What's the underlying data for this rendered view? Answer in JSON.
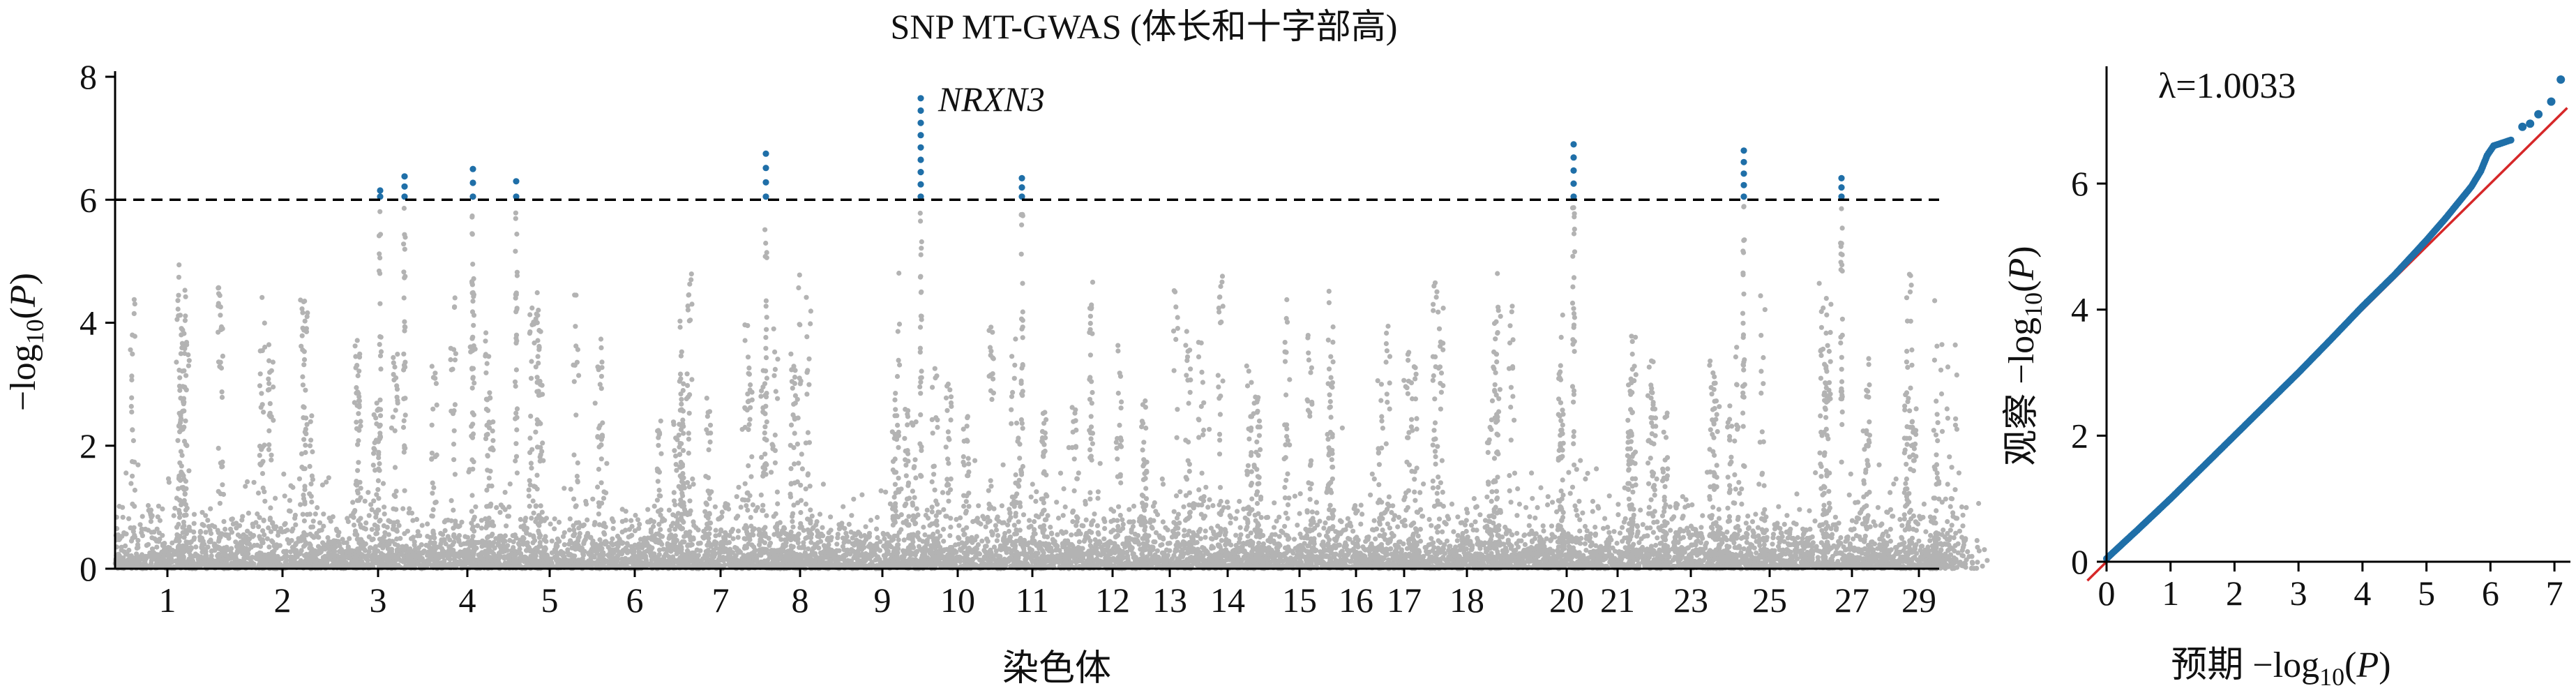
{
  "colors": {
    "background": "#ffffff",
    "nonsignificant_points": "#b3b3b3",
    "significant_points": "#1f6fa8",
    "threshold_line": "#000000",
    "reference_line": "#d62728",
    "axis": "#000000"
  },
  "chart_data": [
    {
      "id": "manhattan",
      "type": "scatter",
      "subtype": "manhattan",
      "title": "SNP MT-GWAS (体长和十字部高)",
      "xlabel": "染色体",
      "ylabel": "−log10(P)",
      "ylabel_parts": {
        "prefix": "−log",
        "sub": "10",
        "open": "(",
        "var": "P",
        "close": ")"
      },
      "ylim": [
        0,
        8
      ],
      "yticks": [
        0,
        2,
        4,
        6,
        8
      ],
      "threshold": 6.0,
      "threshold_style": "dashed",
      "chromosome_ticks": [
        "1",
        "2",
        "3",
        "4",
        "5",
        "6",
        "7",
        "8",
        "9",
        "10",
        "11",
        "12",
        "13",
        "14",
        "15",
        "16",
        "17",
        "18",
        "20",
        "21",
        "23",
        "25",
        "27",
        "29"
      ],
      "annotations": [
        {
          "text": "NRXN3",
          "italic": true,
          "chromosome": "10",
          "value": 7.65
        }
      ],
      "peaks": [
        {
          "chromosome": "3",
          "max": 6.15
        },
        {
          "chromosome": "3",
          "max": 6.38
        },
        {
          "chromosome": "4",
          "max": 6.5
        },
        {
          "chromosome": "5",
          "max": 6.3
        },
        {
          "chromosome": "8",
          "max": 6.75
        },
        {
          "chromosome": "10",
          "max": 7.65
        },
        {
          "chromosome": "11",
          "max": 6.35
        },
        {
          "chromosome": "20",
          "max": 6.9
        },
        {
          "chromosome": "25",
          "max": 6.8
        },
        {
          "chromosome": "27",
          "max": 6.35
        }
      ],
      "grid": false,
      "legend": "none"
    },
    {
      "id": "qq",
      "type": "scatter",
      "subtype": "qq",
      "xlabel": "预期 −log10(P)",
      "xlabel_parts": {
        "prefix": "预期 −log",
        "sub": "10",
        "open": "(",
        "var": "P",
        "close": ")"
      },
      "ylabel": "观察 −log10(P)",
      "ylabel_parts": {
        "prefix": "观察 −log",
        "sub": "10",
        "open": "(",
        "var": "P",
        "close": ")"
      },
      "xlim": [
        0,
        7.25
      ],
      "ylim": [
        0,
        7.75
      ],
      "xticks": [
        0,
        1,
        2,
        3,
        4,
        5,
        6,
        7
      ],
      "yticks": [
        0,
        2,
        4,
        6
      ],
      "lambda_label": "λ=1.0033",
      "reference_line": "y = x",
      "observed_curve": [
        [
          0,
          0.05
        ],
        [
          0.5,
          0.52
        ],
        [
          1,
          1.0
        ],
        [
          1.5,
          1.5
        ],
        [
          2,
          2.0
        ],
        [
          2.5,
          2.5
        ],
        [
          3,
          3.0
        ],
        [
          3.5,
          3.52
        ],
        [
          4,
          4.05
        ],
        [
          4.5,
          4.55
        ],
        [
          5,
          5.1
        ],
        [
          5.3,
          5.45
        ],
        [
          5.5,
          5.7
        ],
        [
          5.7,
          5.95
        ],
        [
          5.85,
          6.2
        ],
        [
          5.95,
          6.45
        ],
        [
          6.05,
          6.6
        ],
        [
          6.35,
          6.7
        ]
      ],
      "tail_points": [
        [
          6.5,
          6.9
        ],
        [
          6.62,
          6.95
        ],
        [
          6.75,
          7.1
        ],
        [
          6.95,
          7.3
        ],
        [
          7.1,
          7.65
        ]
      ],
      "grid": false,
      "legend": "none"
    }
  ]
}
